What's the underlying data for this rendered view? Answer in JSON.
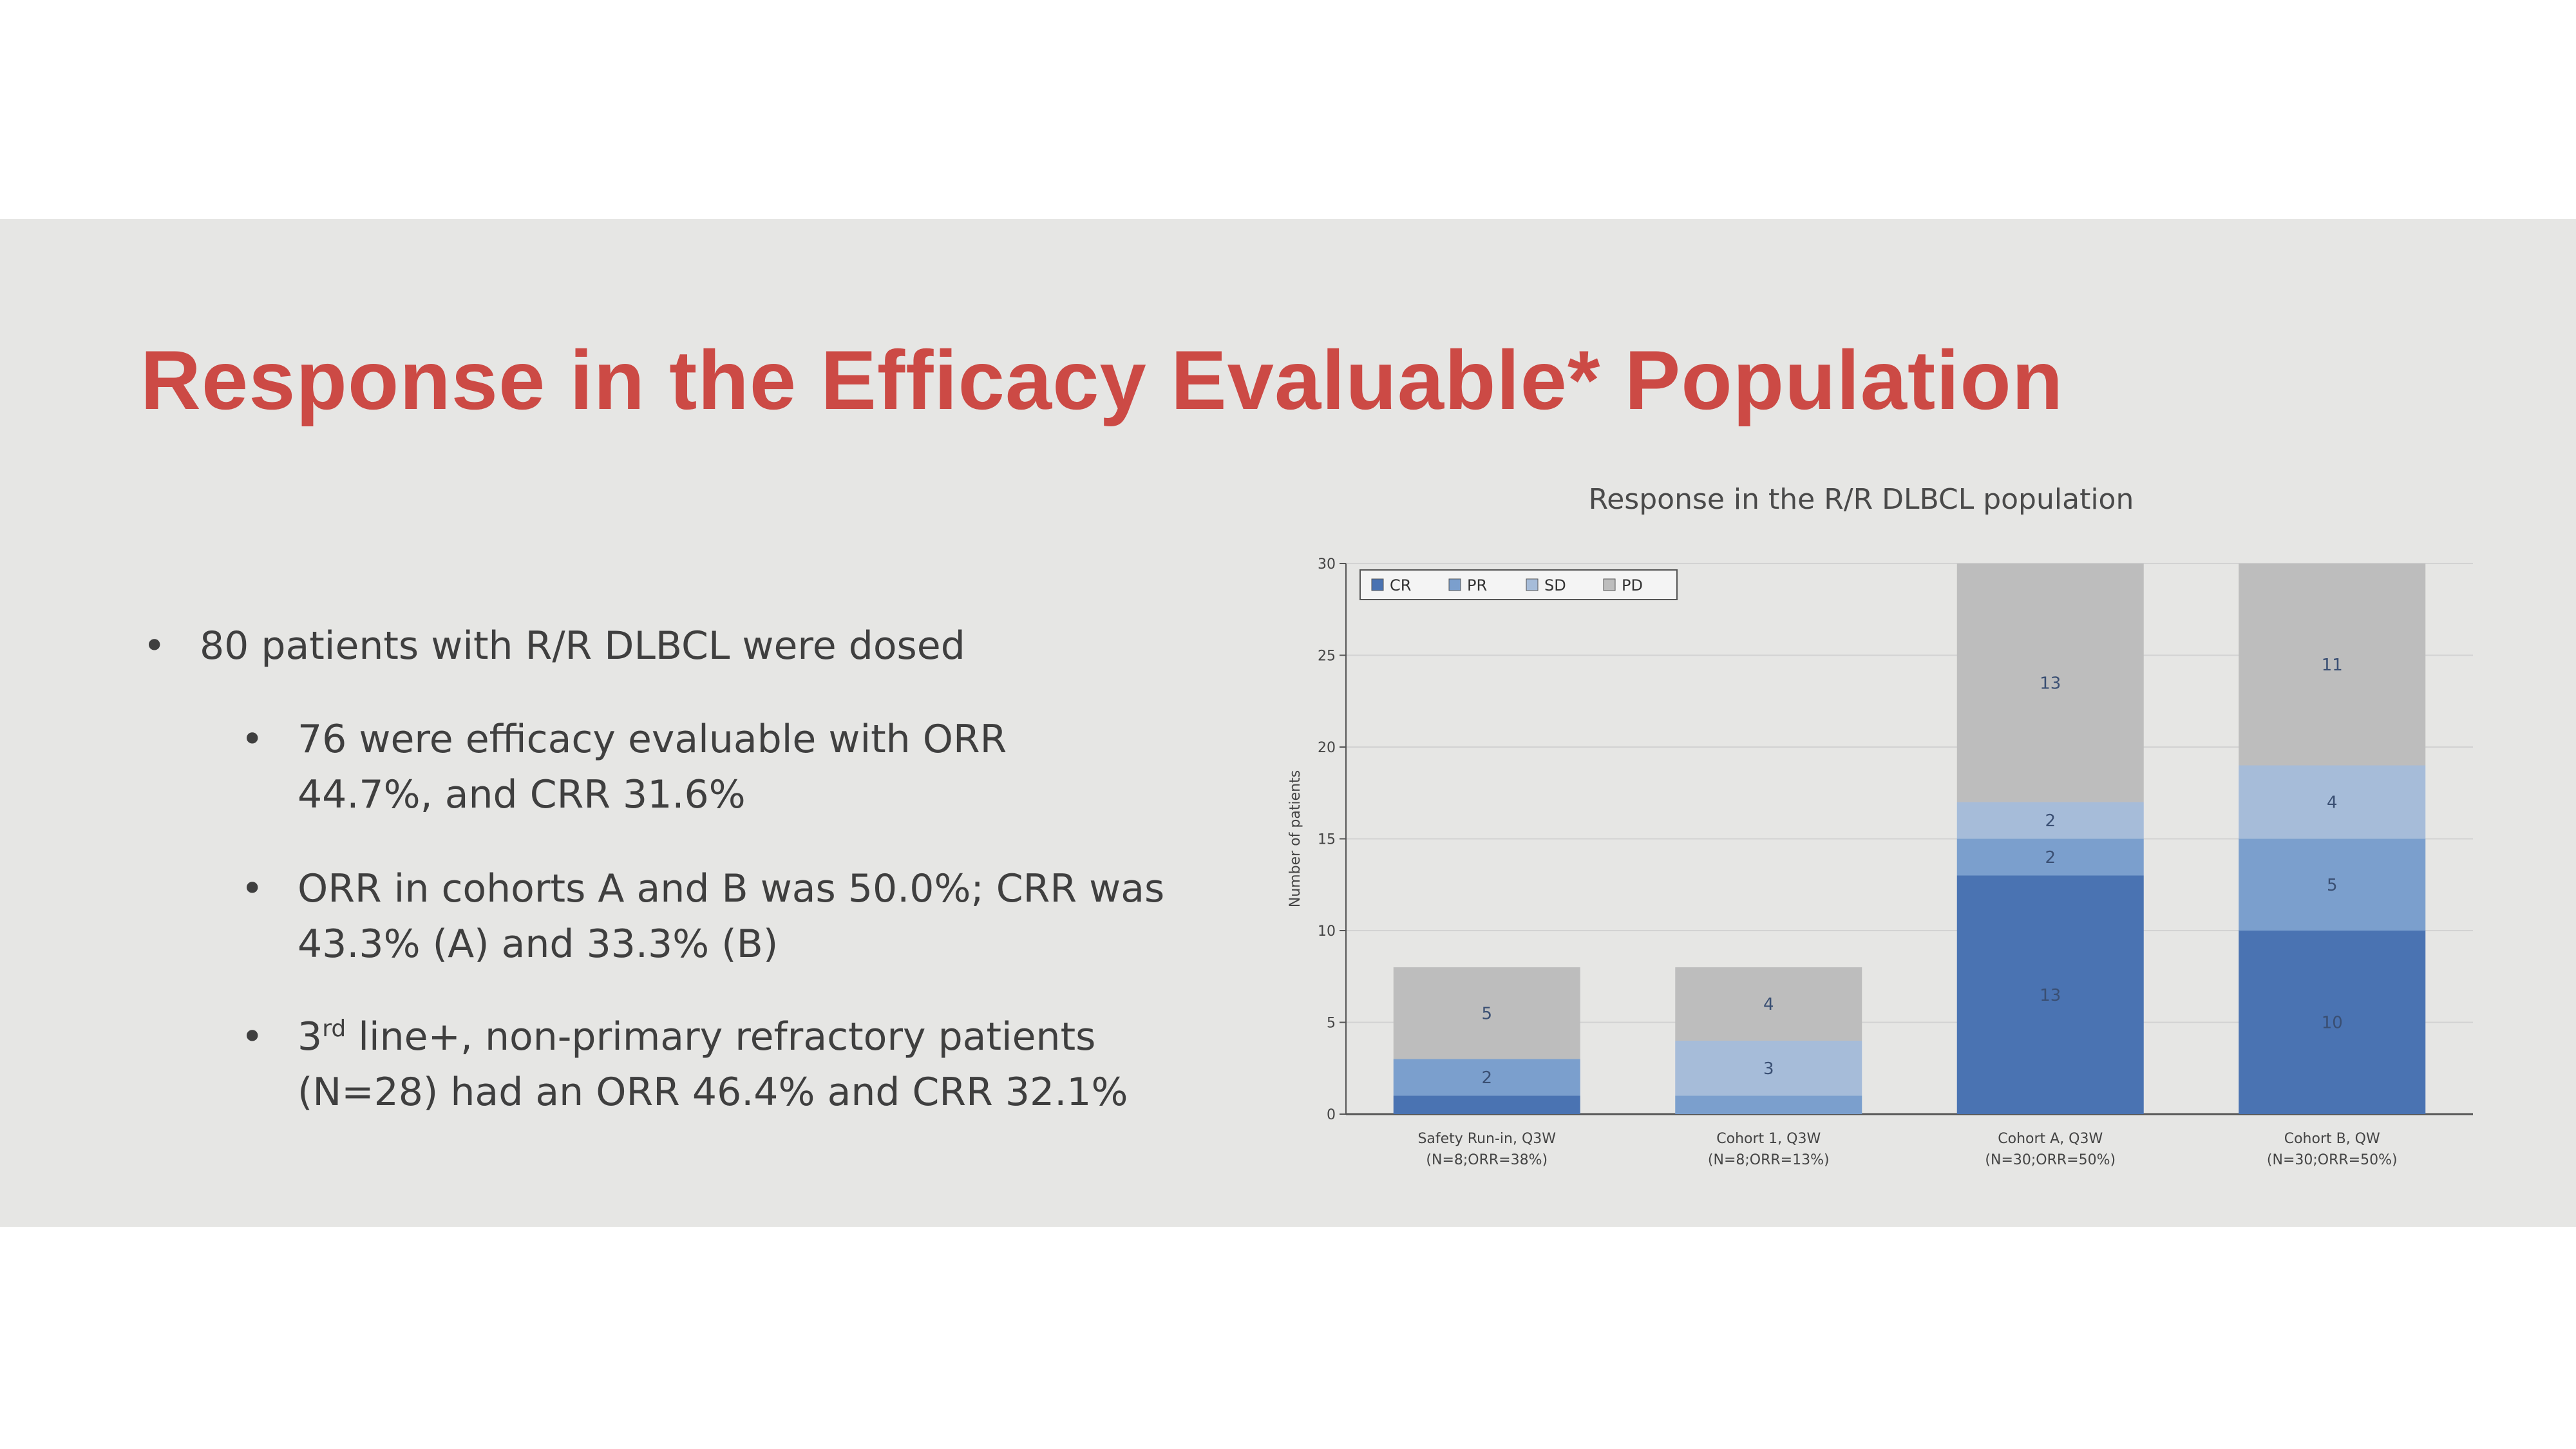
{
  "slide": {
    "title": "Response in the Efficacy Evaluable* Population",
    "bullets": [
      {
        "level": 1,
        "lines": [
          "80 patients with R/R DLBCL were dosed"
        ]
      },
      {
        "level": 2,
        "lines": [
          "76 were efficacy evaluable with ORR",
          "44.7%, and CRR 31.6%"
        ]
      },
      {
        "level": 2,
        "lines": [
          "ORR in cohorts A and B was 50.0%; CRR was",
          "43.3% (A) and 33.3% (B)"
        ]
      },
      {
        "level": 2,
        "line1_pre": "3",
        "line1_sup": "rd",
        "line1_post": " line+, non-primary refractory patients",
        "line2": "(N=28) had an ORR 46.4% and CRR 32.1%"
      }
    ]
  },
  "chart_data": {
    "type": "bar",
    "stacked": true,
    "title": "Response in the R/R DLBCL population",
    "ylabel": "Number of patients",
    "ylim": [
      0,
      30
    ],
    "yticks": [
      "0",
      "5",
      "10",
      "15",
      "20",
      "25",
      "30"
    ],
    "categories": [
      {
        "line1": "Safety Run-in, Q3W",
        "line2": "(N=8;ORR=38%)"
      },
      {
        "line1": "Cohort 1, Q3W",
        "line2": "(N=8;ORR=13%)"
      },
      {
        "line1": "Cohort A, Q3W",
        "line2": "(N=30;ORR=50%)"
      },
      {
        "line1": "Cohort B, QW",
        "line2": "(N=30;ORR=50%)"
      }
    ],
    "series": [
      {
        "name": "CR",
        "color": "#4a73b2",
        "values": [
          1,
          0,
          13,
          10
        ],
        "labels": [
          "",
          "",
          "13",
          "10"
        ]
      },
      {
        "name": "PR",
        "color": "#7b9fcd",
        "values": [
          2,
          1,
          2,
          5
        ],
        "labels": [
          "2",
          "",
          "2",
          "5"
        ]
      },
      {
        "name": "SD",
        "color": "#a6bcd9",
        "values": [
          0,
          3,
          2,
          4
        ],
        "labels": [
          "",
          "3",
          "2",
          "4"
        ]
      },
      {
        "name": "PD",
        "color": "#bdbdbd",
        "values": [
          5,
          4,
          13,
          11
        ],
        "labels": [
          "5",
          "4",
          "13",
          "11"
        ]
      }
    ],
    "legend": "top-left",
    "grid": true
  }
}
